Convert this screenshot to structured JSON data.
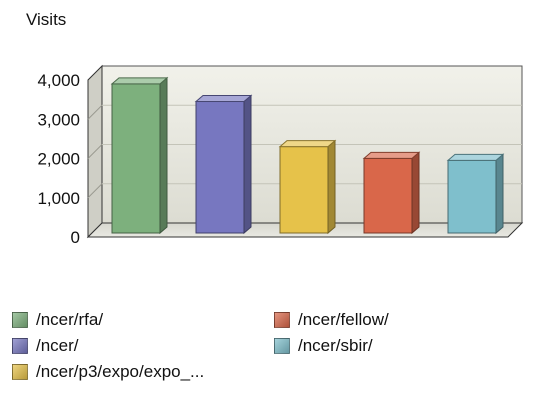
{
  "chart_data": {
    "type": "bar",
    "title": "Visits",
    "categories": [
      "/ncer/rfa/",
      "/ncer/",
      "/ncer/p3/expo/expo_...",
      "/ncer/fellow/",
      "/ncer/sbir/"
    ],
    "values": [
      3800,
      3350,
      2200,
      1900,
      1850
    ],
    "colors": [
      "#7db07d",
      "#7777c0",
      "#e6c24a",
      "#d9674a",
      "#7fbfcc"
    ],
    "ylim": [
      0,
      4000
    ],
    "yticks": [
      0,
      1000,
      2000,
      3000,
      4000
    ],
    "ytick_labels": [
      "0",
      "1,000",
      "2,000",
      "3,000",
      "4,000"
    ],
    "xlabel": "",
    "ylabel": "",
    "grid": true,
    "legend_position": "bottom"
  }
}
